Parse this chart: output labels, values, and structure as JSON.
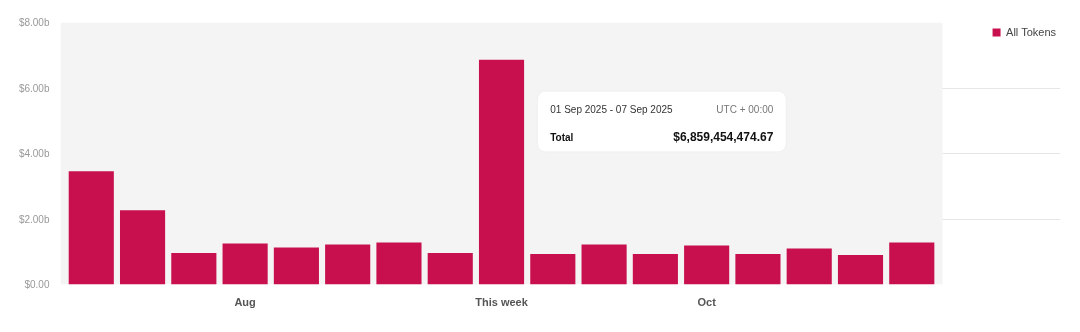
{
  "chart_data": {
    "type": "bar",
    "categories": [
      null,
      null,
      null,
      "Aug",
      null,
      null,
      null,
      null,
      "This week",
      null,
      null,
      null,
      "Oct",
      null,
      null,
      null,
      null
    ],
    "series": [
      {
        "name": "All Tokens",
        "color": "#c8104f",
        "values": [
          3.46,
          2.27,
          0.96,
          1.25,
          1.13,
          1.22,
          1.28,
          0.96,
          6.86,
          0.93,
          1.22,
          0.93,
          1.19,
          0.93,
          1.1,
          0.9,
          1.28
        ]
      }
    ],
    "ylim": [
      0,
      8
    ],
    "yticks": [
      {
        "value": 0,
        "label": "$0.00"
      },
      {
        "value": 2,
        "label": "$2.00b"
      },
      {
        "value": 4,
        "label": "$4.00b"
      },
      {
        "value": 6,
        "label": "$6.00b"
      },
      {
        "value": 8,
        "label": "$8.00b"
      }
    ],
    "grid": "y",
    "legend": "top right",
    "annotations": [
      "01 Sep 2025 - 07 Sep 2025",
      "UTC + 00:00",
      "Total",
      "$6,859,454,474.67"
    ]
  }
}
